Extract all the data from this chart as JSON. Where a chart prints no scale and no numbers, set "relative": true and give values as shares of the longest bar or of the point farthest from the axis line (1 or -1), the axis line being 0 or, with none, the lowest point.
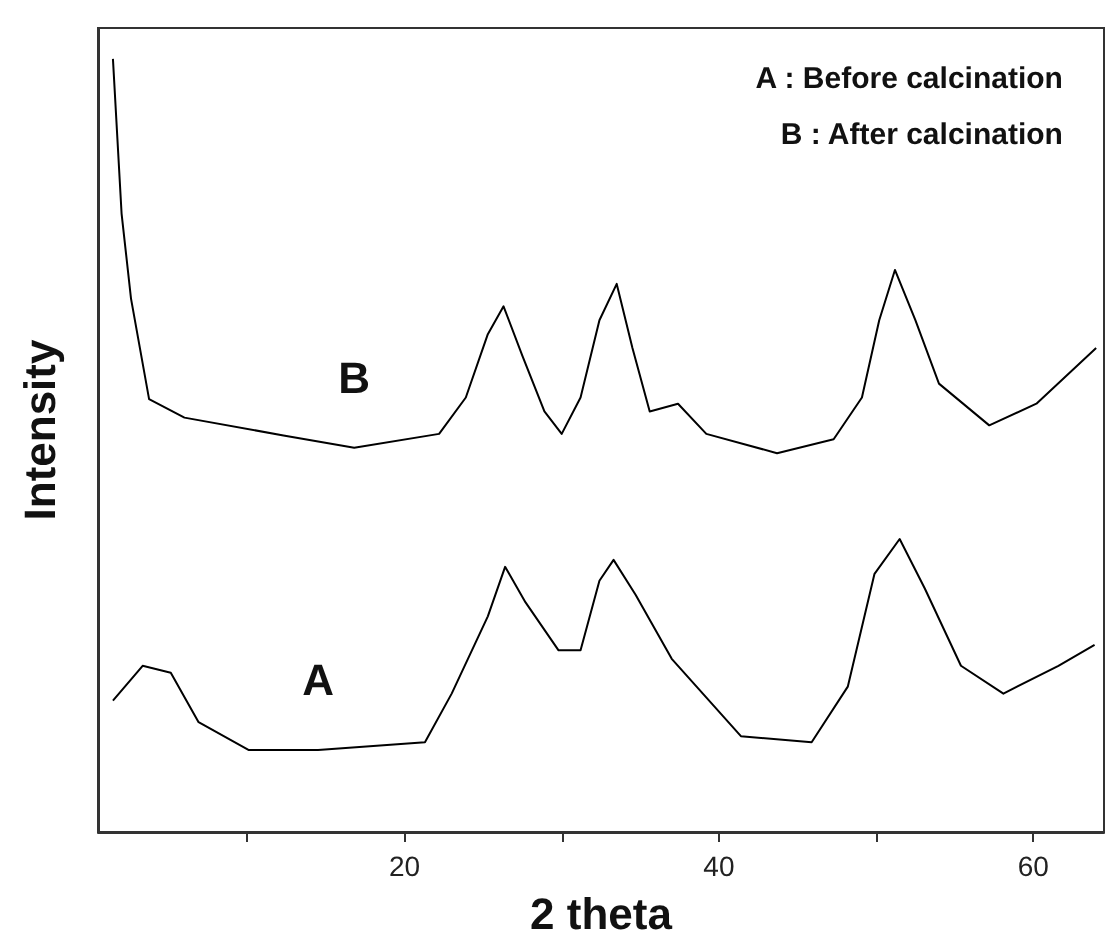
{
  "chart_data": {
    "type": "line",
    "relative": true,
    "xlabel": "2 theta",
    "ylabel": "Intensity",
    "xlim": [
      0.5,
      64.5
    ],
    "xticks": [
      {
        "value": 10,
        "label": null
      },
      20,
      {
        "value": 30,
        "label": null
      },
      40,
      {
        "value": 50,
        "label": null
      },
      60
    ],
    "tick_labels": "x",
    "grid": false,
    "legend": false,
    "marker": "none",
    "line_style": "solid",
    "annotations": [
      "A : Before calcination",
      "B : After calcination"
    ],
    "series": [
      {
        "name": "B",
        "color": "#000000",
        "x": [
          1.45,
          2.0,
          2.6,
          3.75,
          6.0,
          12.3,
          16.8,
          22.2,
          23.9,
          25.3,
          26.3,
          27.5,
          28.9,
          30.0,
          31.2,
          32.4,
          33.5,
          34.5,
          35.6,
          37.4,
          39.2,
          43.7,
          47.3,
          49.1,
          50.2,
          51.2,
          52.5,
          54.0,
          57.2,
          60.2,
          64.0
        ],
        "values": [
          1.0,
          0.8,
          0.69,
          0.56,
          0.536,
          0.513,
          0.497,
          0.515,
          0.562,
          0.644,
          0.68,
          0.616,
          0.544,
          0.515,
          0.562,
          0.662,
          0.709,
          0.626,
          0.544,
          0.554,
          0.515,
          0.49,
          0.508,
          0.562,
          0.662,
          0.727,
          0.662,
          0.58,
          0.526,
          0.554,
          0.626
        ]
      },
      {
        "name": "A",
        "color": "#000000",
        "x": [
          1.45,
          3.34,
          5.13,
          6.9,
          10.1,
          14.5,
          21.3,
          23.0,
          25.3,
          26.4,
          27.7,
          29.8,
          31.2,
          32.4,
          33.3,
          34.7,
          37.0,
          41.4,
          45.9,
          48.2,
          49.9,
          51.5,
          53.1,
          55.4,
          58.1,
          61.6,
          63.9
        ],
        "values": [
          0.17,
          0.215,
          0.206,
          0.142,
          0.106,
          0.106,
          0.116,
          0.179,
          0.279,
          0.343,
          0.297,
          0.235,
          0.235,
          0.325,
          0.352,
          0.307,
          0.224,
          0.124,
          0.116,
          0.188,
          0.334,
          0.379,
          0.315,
          0.215,
          0.179,
          0.215,
          0.242
        ]
      }
    ]
  }
}
